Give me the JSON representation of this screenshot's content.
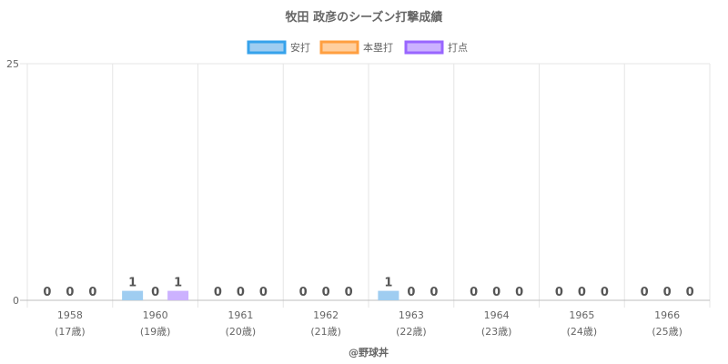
{
  "chart_data": {
    "type": "bar",
    "title": "牧田 政彦のシーズン打撃成績",
    "categories": [
      "1958",
      "1960",
      "1961",
      "1962",
      "1963",
      "1964",
      "1965",
      "1966"
    ],
    "category_sublabels": [
      "(17歳)",
      "(19歳)",
      "(20歳)",
      "(21歳)",
      "(22歳)",
      "(23歳)",
      "(24歳)",
      "(25歳)"
    ],
    "series": [
      {
        "name": "安打",
        "values": [
          0,
          1,
          0,
          0,
          1,
          0,
          0,
          0
        ],
        "color": "#9fcdf1",
        "border_color": "#36a2eb"
      },
      {
        "name": "本塁打",
        "values": [
          0,
          0,
          0,
          0,
          0,
          0,
          0,
          0
        ],
        "color": "#ffcf9f",
        "border_color": "#ff9f40"
      },
      {
        "name": "打点",
        "values": [
          0,
          1,
          0,
          0,
          0,
          0,
          0,
          0
        ],
        "color": "#ccb2ff",
        "border_color": "#9966ff"
      }
    ],
    "ylim": [
      0,
      25
    ],
    "y_ticks": [
      "0",
      "25"
    ],
    "grid": true,
    "legend_position": "top",
    "credit": "@野球丼"
  }
}
